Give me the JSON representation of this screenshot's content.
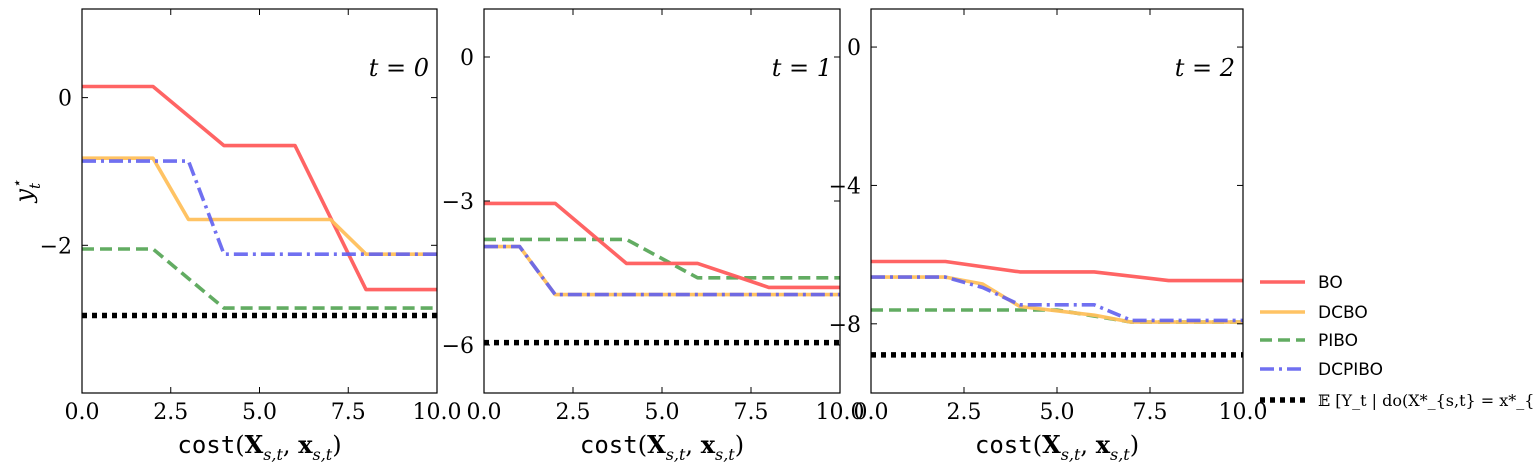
{
  "chart_data": [
    {
      "type": "line",
      "panel_label": "t = 0",
      "xlabel": "cost(X_{s,t}, x_{s,t})",
      "ylabel": "y*_t",
      "xlim": [
        0,
        10
      ],
      "ylim": [
        -4.0,
        1.2
      ],
      "xticks": [
        0,
        2.5,
        5,
        7.5,
        10
      ],
      "xtick_labels": [
        "0.0",
        "2.5",
        "5.0",
        "7.5",
        "10.0"
      ],
      "yticks": [
        0,
        -2
      ],
      "ytick_labels": [
        "0",
        "−2"
      ],
      "series": [
        {
          "name": "BO",
          "x": [
            0,
            2,
            4,
            6,
            8,
            10
          ],
          "y": [
            0.15,
            0.15,
            -0.65,
            -0.65,
            -2.6,
            -2.6
          ]
        },
        {
          "name": "DCBO",
          "x": [
            0,
            2,
            3,
            7,
            8,
            10
          ],
          "y": [
            -0.82,
            -0.82,
            -1.65,
            -1.65,
            -2.12,
            -2.12
          ]
        },
        {
          "name": "PIBO",
          "x": [
            0,
            2,
            4,
            10
          ],
          "y": [
            -2.05,
            -2.05,
            -2.85,
            -2.85
          ]
        },
        {
          "name": "DCPIBO",
          "x": [
            0,
            3,
            4,
            10
          ],
          "y": [
            -0.86,
            -0.86,
            -2.12,
            -2.12
          ]
        },
        {
          "name": "E[Y_t | do(X*_{s,t} = x*_{s,t})]",
          "x": [
            0,
            10
          ],
          "y": [
            -2.95,
            -2.95
          ]
        }
      ]
    },
    {
      "type": "line",
      "panel_label": "t = 1",
      "xlabel": "cost(X_{s,t}, x_{s,t})",
      "xlim": [
        0,
        10
      ],
      "ylim": [
        -7.0,
        1.0
      ],
      "xticks": [
        0,
        2.5,
        5,
        7.5,
        10
      ],
      "xtick_labels": [
        "0.0",
        "2.5",
        "5.0",
        "7.5",
        "10.0"
      ],
      "yticks": [
        0,
        -3,
        -6
      ],
      "ytick_labels": [
        "0",
        "−3",
        "−6"
      ],
      "series": [
        {
          "name": "BO",
          "x": [
            0,
            2,
            4,
            6,
            8,
            10
          ],
          "y": [
            -3.05,
            -3.05,
            -4.3,
            -4.3,
            -4.8,
            -4.8
          ]
        },
        {
          "name": "DCBO",
          "x": [
            0,
            1,
            2,
            10
          ],
          "y": [
            -3.95,
            -3.95,
            -4.95,
            -4.95
          ]
        },
        {
          "name": "PIBO",
          "x": [
            0,
            4,
            6,
            10
          ],
          "y": [
            -3.8,
            -3.8,
            -4.6,
            -4.6
          ]
        },
        {
          "name": "DCPIBO",
          "x": [
            0,
            1,
            2,
            10
          ],
          "y": [
            -3.95,
            -3.95,
            -4.95,
            -4.95
          ]
        },
        {
          "name": "E[Y_t | do(X*_{s,t} = x*_{s,t})]",
          "x": [
            0,
            10
          ],
          "y": [
            -5.95,
            -5.95
          ]
        }
      ]
    },
    {
      "type": "line",
      "panel_label": "t = 2",
      "xlabel": "cost(X_{s,t}, x_{s,t})",
      "xlim": [
        0,
        10
      ],
      "ylim": [
        -10.0,
        1.1
      ],
      "xticks": [
        0,
        2.5,
        5,
        7.5,
        10
      ],
      "xtick_labels": [
        "0.0",
        "2.5",
        "5.0",
        "7.5",
        "10.0"
      ],
      "yticks": [
        0,
        -4,
        -8
      ],
      "ytick_labels": [
        "0",
        "−4",
        "−8"
      ],
      "series": [
        {
          "name": "BO",
          "x": [
            0,
            2,
            4,
            6,
            8,
            10
          ],
          "y": [
            -6.2,
            -6.2,
            -6.5,
            -6.5,
            -6.75,
            -6.75
          ]
        },
        {
          "name": "DCBO",
          "x": [
            0,
            2,
            3,
            4,
            6,
            7,
            8,
            10
          ],
          "y": [
            -6.65,
            -6.65,
            -6.85,
            -7.5,
            -7.75,
            -7.95,
            -7.95,
            -7.95
          ]
        },
        {
          "name": "PIBO",
          "x": [
            0,
            5,
            7,
            10
          ],
          "y": [
            -7.6,
            -7.6,
            -7.95,
            -7.95
          ]
        },
        {
          "name": "DCPIBO",
          "x": [
            0,
            2,
            3,
            4,
            6,
            7,
            10
          ],
          "y": [
            -6.65,
            -6.65,
            -6.95,
            -7.45,
            -7.45,
            -7.9,
            -7.9
          ]
        },
        {
          "name": "E[Y_t | do(X*_{s,t} = x*_{s,t})]",
          "x": [
            0,
            10
          ],
          "y": [
            -8.9,
            -8.9
          ]
        }
      ]
    }
  ],
  "legend": {
    "placement": "outside-right-bottom",
    "items": [
      {
        "label": "BO",
        "color": "#ff5c5c",
        "style": "solid"
      },
      {
        "label": "DCBO",
        "color": "#ffc05c",
        "style": "solid"
      },
      {
        "label": "PIBO",
        "color": "#5aa85a",
        "style": "dashed"
      },
      {
        "label": "DCPIBO",
        "color": "#6060f0",
        "style": "dashdot"
      },
      {
        "label": "𝔼 [Y_t | do(X*_{s,t} = x*_{s,t})]",
        "color": "#000000",
        "style": "dotted"
      }
    ]
  },
  "colors": {
    "BO": "#ff5c5c",
    "DCBO": "#ffc05c",
    "PIBO": "#5aa85a",
    "DCPIBO": "#6060f0",
    "optimum": "#000000"
  }
}
